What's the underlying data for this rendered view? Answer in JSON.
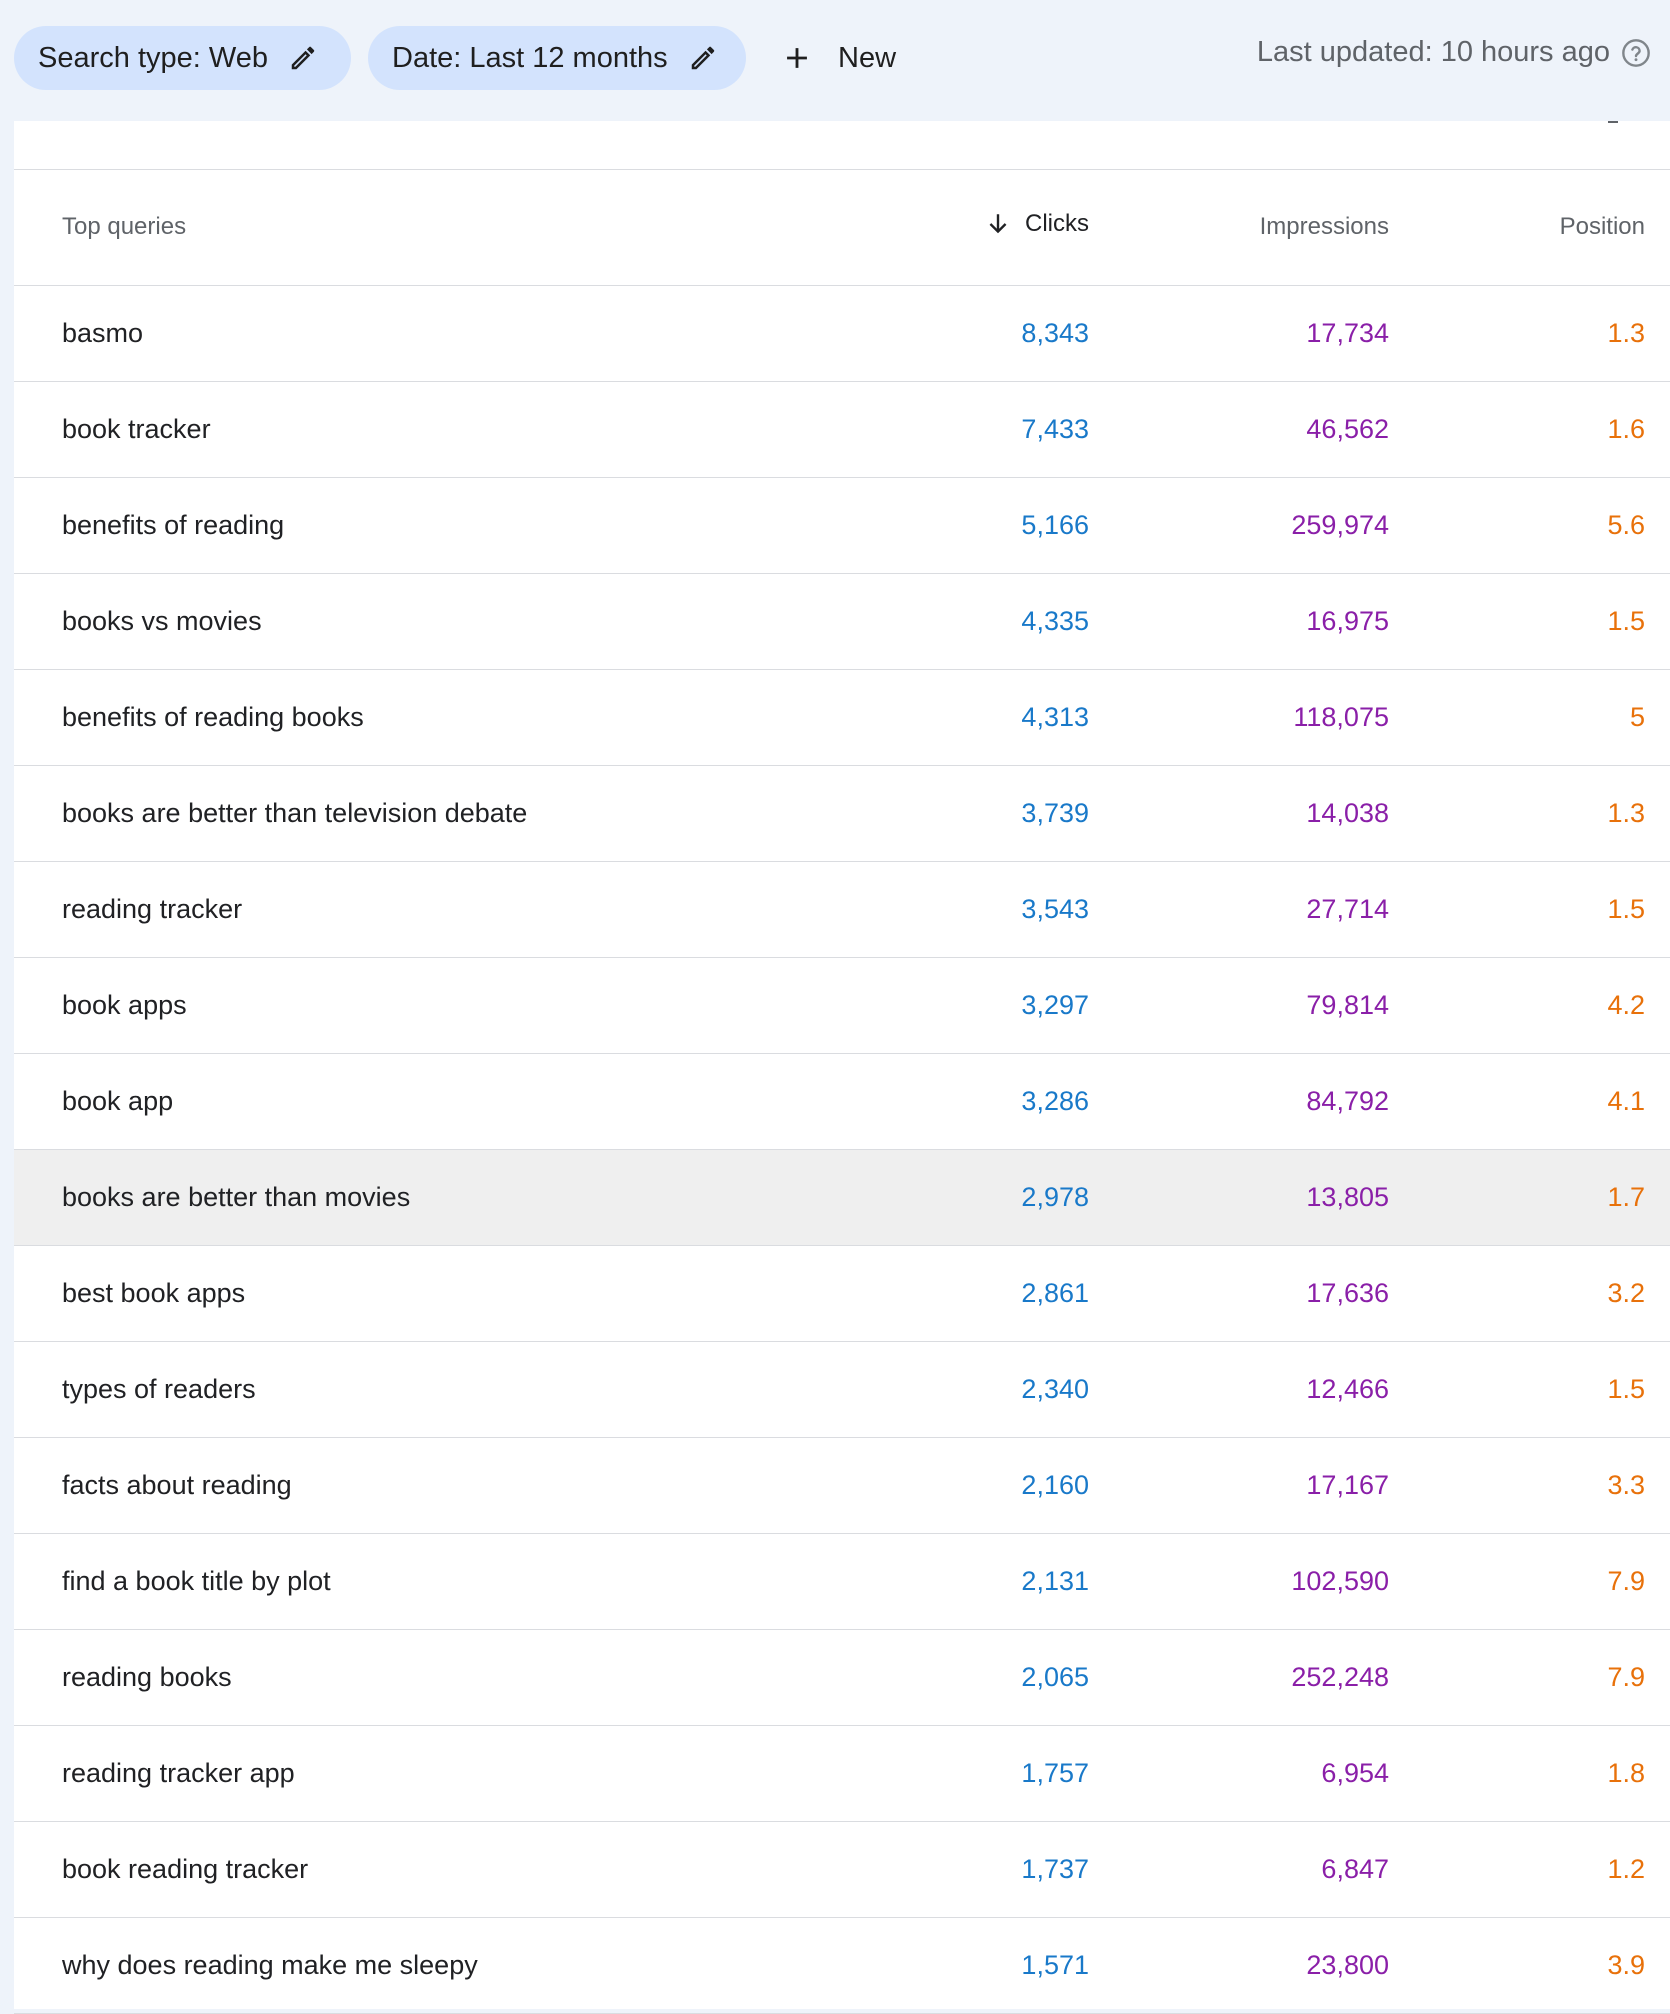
{
  "filters": {
    "search_type": "Search type: Web",
    "date": "Date: Last 12 months",
    "new_label": "New"
  },
  "status": {
    "last_updated": "Last updated: 10 hours ago"
  },
  "icons": {
    "edit": "pencil-icon",
    "add": "plus-icon",
    "help": "help-icon",
    "sort": "arrow-down-icon"
  },
  "colors": {
    "clicks": "#1979c9",
    "impressions": "#8a1fa8",
    "position": "#e8710a",
    "chip_bg": "#d3e3fd"
  },
  "table": {
    "headers": {
      "query": "Top queries",
      "clicks": "Clicks",
      "impressions": "Impressions",
      "position": "Position"
    },
    "sorted_by": "Clicks",
    "rows": [
      {
        "query": "basmo",
        "clicks": "8,343",
        "impressions": "17,734",
        "position": "1.3"
      },
      {
        "query": "book tracker",
        "clicks": "7,433",
        "impressions": "46,562",
        "position": "1.6"
      },
      {
        "query": "benefits of reading",
        "clicks": "5,166",
        "impressions": "259,974",
        "position": "5.6"
      },
      {
        "query": "books vs movies",
        "clicks": "4,335",
        "impressions": "16,975",
        "position": "1.5"
      },
      {
        "query": "benefits of reading books",
        "clicks": "4,313",
        "impressions": "118,075",
        "position": "5"
      },
      {
        "query": "books are better than television debate",
        "clicks": "3,739",
        "impressions": "14,038",
        "position": "1.3"
      },
      {
        "query": "reading tracker",
        "clicks": "3,543",
        "impressions": "27,714",
        "position": "1.5"
      },
      {
        "query": "book apps",
        "clicks": "3,297",
        "impressions": "79,814",
        "position": "4.2"
      },
      {
        "query": "book app",
        "clicks": "3,286",
        "impressions": "84,792",
        "position": "4.1"
      },
      {
        "query": "books are better than movies",
        "clicks": "2,978",
        "impressions": "13,805",
        "position": "1.7",
        "highlighted": true
      },
      {
        "query": "best book apps",
        "clicks": "2,861",
        "impressions": "17,636",
        "position": "3.2"
      },
      {
        "query": "types of readers",
        "clicks": "2,340",
        "impressions": "12,466",
        "position": "1.5"
      },
      {
        "query": "facts about reading",
        "clicks": "2,160",
        "impressions": "17,167",
        "position": "3.3"
      },
      {
        "query": "find a book title by plot",
        "clicks": "2,131",
        "impressions": "102,590",
        "position": "7.9"
      },
      {
        "query": "reading books",
        "clicks": "2,065",
        "impressions": "252,248",
        "position": "7.9"
      },
      {
        "query": "reading tracker app",
        "clicks": "1,757",
        "impressions": "6,954",
        "position": "1.8"
      },
      {
        "query": "book reading tracker",
        "clicks": "1,737",
        "impressions": "6,847",
        "position": "1.2"
      },
      {
        "query": "why does reading make me sleepy",
        "clicks": "1,571",
        "impressions": "23,800",
        "position": "3.9"
      }
    ]
  }
}
